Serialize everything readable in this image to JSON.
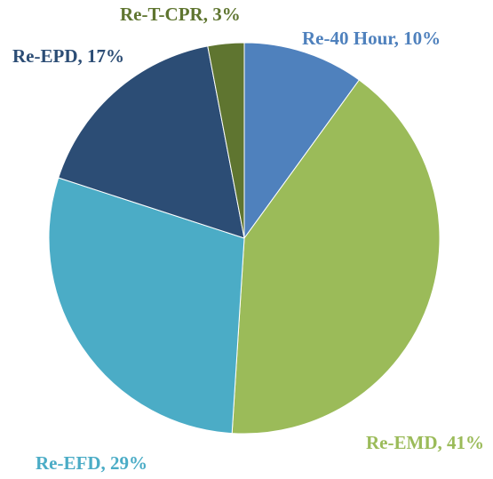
{
  "chart_data": {
    "type": "pie",
    "values": [
      10,
      41,
      29,
      17,
      3
    ],
    "value_labels": [
      "Re-40 Hour, 10%",
      "Re-EMD, 41%",
      "Re-EFD, 29%",
      "Re-EPD, 17%",
      "Re-T-CPR, 3%"
    ],
    "colors": [
      "#4f81bd",
      "#9bbb59",
      "#4bacc6",
      "#2c4d75",
      "#5f7530"
    ]
  }
}
